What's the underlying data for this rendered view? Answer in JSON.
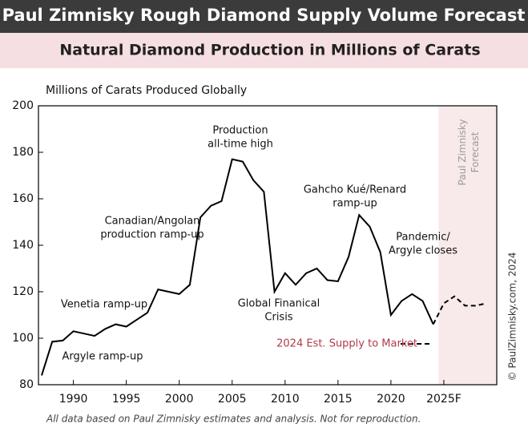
{
  "chart_data": {
    "type": "line",
    "title": "Paul Zimnisky Rough Diamond Supply Volume Forecast",
    "subtitle": "Natural Diamond Production in Millions of Carats",
    "y_label": "Millions of Carats Produced Globally",
    "series": [
      {
        "color": "#000000",
        "dashed": false,
        "x": [
          1987,
          1988,
          1989,
          1990,
          1991,
          1992,
          1993,
          1994,
          1995,
          1996,
          1997,
          1998,
          1999,
          2000,
          2001,
          2002,
          2003,
          2004,
          2005,
          2006,
          2007,
          2008,
          2009,
          2010,
          2011,
          2012,
          2013,
          2014,
          2015,
          2016,
          2017,
          2018,
          2019,
          2020,
          2021,
          2022,
          2023,
          2024
        ],
        "values": [
          84,
          98.5,
          99,
          103,
          102,
          101,
          104,
          106,
          105,
          108,
          111,
          121,
          120,
          119,
          123,
          152,
          157,
          159,
          177,
          176,
          168,
          163,
          120,
          128,
          123,
          128,
          130,
          125,
          124.5,
          135,
          153,
          148,
          137,
          110,
          116,
          119,
          116,
          106
        ]
      },
      {
        "name": "2024 Est. Supply to Market",
        "color": "#000000",
        "dashed": true,
        "x": [
          2024,
          2025,
          2026,
          2027,
          2028,
          2029
        ],
        "values": [
          106,
          115,
          118,
          114,
          114,
          115
        ]
      }
    ],
    "legend_color": "#b23a48",
    "forecast_region": {
      "start": 2024.5,
      "label": [
        "Paul Zimnisky",
        "Forecast"
      ],
      "color": "#f8eaea"
    },
    "annotations": [
      {
        "lines": [
          "Production",
          "all-time high"
        ]
      },
      {
        "lines": [
          "Canadian/Angolan",
          "production ramp-up"
        ]
      },
      {
        "lines": [
          "Gahcho Kué/Renard",
          "ramp-up"
        ]
      },
      {
        "lines": [
          "Pandemic/",
          "Argyle closes"
        ]
      },
      {
        "lines": [
          "Venetia ramp-up"
        ]
      },
      {
        "lines": [
          "Global Finanical",
          "Crisis"
        ]
      },
      {
        "lines": [
          "Argyle ramp-up"
        ]
      }
    ],
    "xlim": [
      1986.7,
      2030
    ],
    "xticks": [
      1990,
      1995,
      2000,
      2005,
      2010,
      2015,
      2020,
      {
        "value": 2025,
        "label": "2025F"
      }
    ],
    "ylim": [
      80,
      200
    ],
    "yticks": [
      80,
      100,
      120,
      140,
      160,
      180,
      200
    ],
    "copyright": "© PaulZimnisky.com, 2024",
    "footnote": "All data based on Paul Zimnisky estimates and analysis. Not for reproduction."
  }
}
